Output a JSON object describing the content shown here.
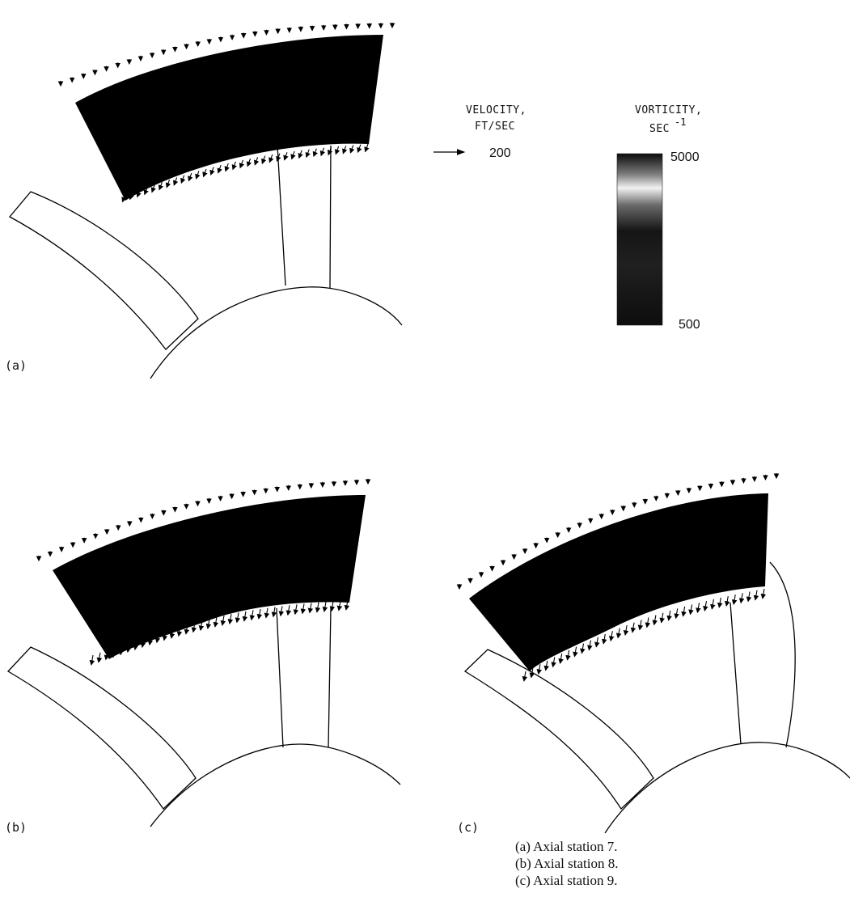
{
  "legend": {
    "velocity_title": "VELOCITY,",
    "velocity_unit": "FT/SEC",
    "velocity_ref_value": "200",
    "vorticity_title": "VORTICITY,",
    "vorticity_unit_base": "SEC",
    "vorticity_unit_exp": "-1",
    "vorticity_max": "5000",
    "vorticity_min": "500",
    "colorbar_colors": [
      "#0b0b0b",
      "#7d7d7d",
      "#f2f2f2",
      "#6a6a6a",
      "#151515",
      "#202020",
      "#0d0d0d"
    ]
  },
  "panels": [
    {
      "label": "(a)",
      "caption": "(a) Axial station 7."
    },
    {
      "label": "(b)",
      "caption": "(b) Axial station 8."
    },
    {
      "label": "(c)",
      "caption": "(c) Axial station 9."
    }
  ]
}
